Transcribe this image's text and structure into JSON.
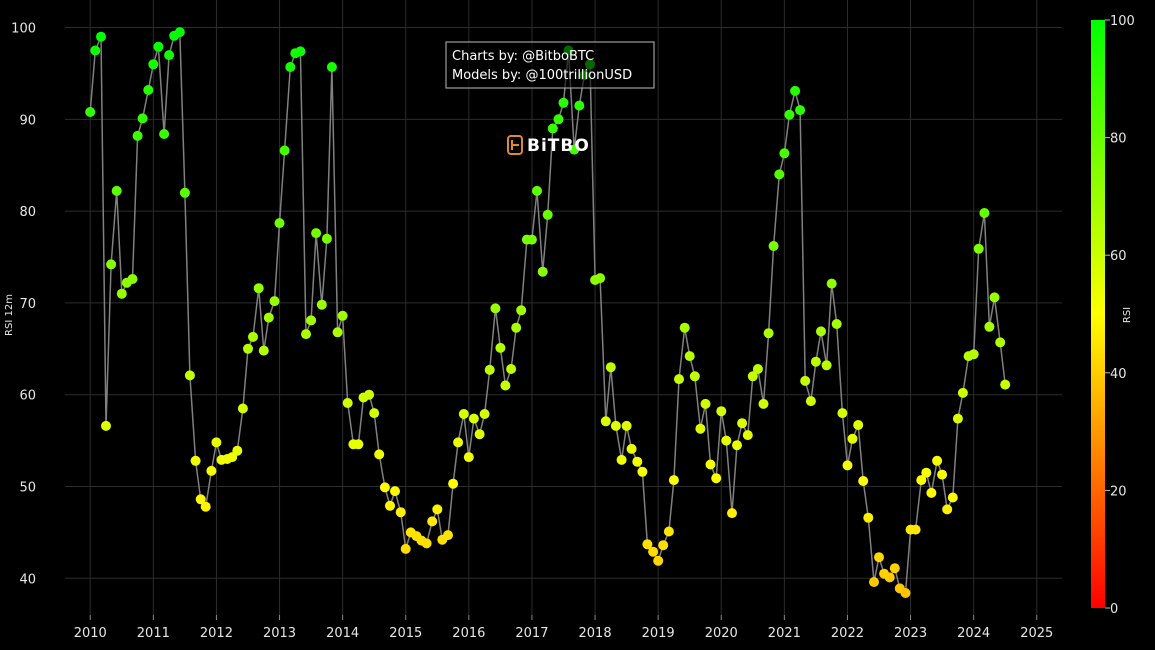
{
  "chart_data": {
    "type": "scatter",
    "title": "",
    "xlabel": "",
    "ylabel": "RSI 12m",
    "xlim": [
      2009.6,
      2025.4
    ],
    "ylim": [
      36,
      103
    ],
    "grid": true,
    "x_ticks": [
      "2010",
      "2011",
      "2012",
      "2013",
      "2014",
      "2015",
      "2016",
      "2017",
      "2018",
      "2019",
      "2020",
      "2021",
      "2022",
      "2023",
      "2024",
      "2025"
    ],
    "y_ticks": [
      "40",
      "50",
      "60",
      "70",
      "80",
      "90",
      "100"
    ],
    "colorbar": {
      "title": "RSI",
      "range": [
        0,
        100
      ],
      "ticks": [
        "0",
        "20",
        "40",
        "60",
        "80",
        "100"
      ],
      "colors": [
        "#ff0000",
        "#ffff00",
        "#00ff00"
      ]
    },
    "line_color": "#808080",
    "series": [
      {
        "name": "RSI 12m",
        "x": [
          2010.0,
          2010.08,
          2010.17,
          2010.25,
          2010.33,
          2010.42,
          2010.5,
          2010.58,
          2010.67,
          2010.75,
          2010.83,
          2010.92,
          2011.0,
          2011.08,
          2011.17,
          2011.25,
          2011.33,
          2011.42,
          2011.5,
          2011.58,
          2011.67,
          2011.75,
          2011.83,
          2011.92,
          2012.0,
          2012.08,
          2012.17,
          2012.25,
          2012.33,
          2012.42,
          2012.5,
          2012.58,
          2012.67,
          2012.75,
          2012.83,
          2012.92,
          2013.0,
          2013.08,
          2013.17,
          2013.25,
          2013.33,
          2013.42,
          2013.5,
          2013.58,
          2013.67,
          2013.75,
          2013.83,
          2013.92,
          2014.0,
          2014.08,
          2014.17,
          2014.25,
          2014.33,
          2014.42,
          2014.5,
          2014.58,
          2014.67,
          2014.75,
          2014.83,
          2014.92,
          2015.0,
          2015.08,
          2015.17,
          2015.25,
          2015.33,
          2015.42,
          2015.5,
          2015.58,
          2015.67,
          2015.75,
          2015.83,
          2015.92,
          2016.0,
          2016.08,
          2016.17,
          2016.25,
          2016.33,
          2016.42,
          2016.5,
          2016.58,
          2016.67,
          2016.75,
          2016.83,
          2016.92,
          2017.0,
          2017.08,
          2017.17,
          2017.25,
          2017.33,
          2017.42,
          2017.5,
          2017.58,
          2017.67,
          2017.75,
          2017.83,
          2017.92,
          2018.0,
          2018.08,
          2018.17,
          2018.25,
          2018.33,
          2018.42,
          2018.5,
          2018.58,
          2018.67,
          2018.75,
          2018.83,
          2018.92,
          2019.0,
          2019.08,
          2019.17,
          2019.25,
          2019.33,
          2019.42,
          2019.5,
          2019.58,
          2019.67,
          2019.75,
          2019.83,
          2019.92,
          2020.0,
          2020.08,
          2020.17,
          2020.25,
          2020.33,
          2020.42,
          2020.5,
          2020.58,
          2020.67,
          2020.75,
          2020.83,
          2020.92,
          2021.0,
          2021.08,
          2021.17,
          2021.25,
          2021.33,
          2021.42,
          2021.5,
          2021.58,
          2021.67,
          2021.75,
          2021.83,
          2021.92,
          2022.0,
          2022.08,
          2022.17,
          2022.25,
          2022.33,
          2022.42,
          2022.5,
          2022.58,
          2022.67,
          2022.75,
          2022.83,
          2022.92,
          2023.0,
          2023.08,
          2023.17,
          2023.25,
          2023.33,
          2023.42,
          2023.5,
          2023.58,
          2023.67,
          2023.75,
          2023.83,
          2023.92,
          2024.0,
          2024.08,
          2024.17,
          2024.25,
          2024.33,
          2024.42,
          2024.5
        ],
        "values": [
          90.8,
          97.5,
          99.0,
          56.6,
          74.2,
          82.2,
          71.0,
          72.2,
          72.6,
          88.2,
          90.1,
          93.2,
          96.0,
          97.9,
          88.4,
          97.0,
          99.1,
          99.5,
          82.0,
          62.1,
          52.8,
          48.6,
          47.8,
          51.7,
          54.8,
          52.9,
          53.0,
          53.2,
          53.9,
          58.5,
          65.0,
          66.3,
          71.6,
          64.8,
          68.4,
          70.2,
          78.7,
          86.6,
          95.7,
          97.2,
          97.4,
          66.6,
          68.1,
          77.6,
          69.8,
          77.0,
          95.7,
          66.8,
          68.6,
          59.1,
          54.6,
          54.6,
          59.7,
          60.0,
          58.0,
          53.5,
          49.9,
          47.9,
          49.5,
          47.2,
          43.2,
          45.0,
          44.6,
          44.1,
          43.8,
          46.2,
          47.5,
          44.2,
          44.7,
          50.3,
          54.8,
          57.9,
          53.2,
          57.4,
          55.7,
          57.9,
          62.7,
          69.4,
          65.1,
          61.0,
          62.8,
          67.3,
          69.2,
          76.9,
          76.9,
          82.2,
          73.4,
          79.6,
          89.0,
          90.0,
          91.8,
          97.5,
          86.7,
          91.5,
          94.8,
          96.0,
          72.5,
          72.7,
          57.1,
          63.0,
          56.6,
          52.9,
          56.6,
          54.1,
          52.7,
          51.6,
          43.7,
          42.9,
          41.9,
          43.6,
          45.1,
          50.7,
          61.7,
          67.3,
          64.2,
          62.0,
          56.3,
          59.0,
          52.4,
          50.9,
          58.2,
          55.0,
          47.1,
          54.5,
          56.9,
          55.6,
          62.0,
          62.8,
          59.0,
          66.7,
          76.2,
          84.0,
          86.3,
          90.5,
          93.1,
          91.0,
          61.5,
          59.3,
          63.6,
          66.9,
          63.2,
          72.1,
          67.7,
          58.0,
          52.3,
          55.2,
          56.7,
          50.6,
          46.6,
          39.6,
          42.3,
          40.5,
          40.1,
          41.1,
          38.9,
          38.4,
          45.3,
          45.3,
          50.7,
          51.5,
          49.3,
          52.8,
          51.3,
          47.5,
          48.8,
          57.4,
          60.2,
          64.2,
          64.4,
          75.9,
          79.8,
          67.4,
          70.6,
          65.7,
          61.1
        ]
      }
    ],
    "annotations": [
      "Charts by: @BitboBTC",
      "Models by: @100trillionUSD"
    ],
    "watermark": "BiTBO"
  }
}
